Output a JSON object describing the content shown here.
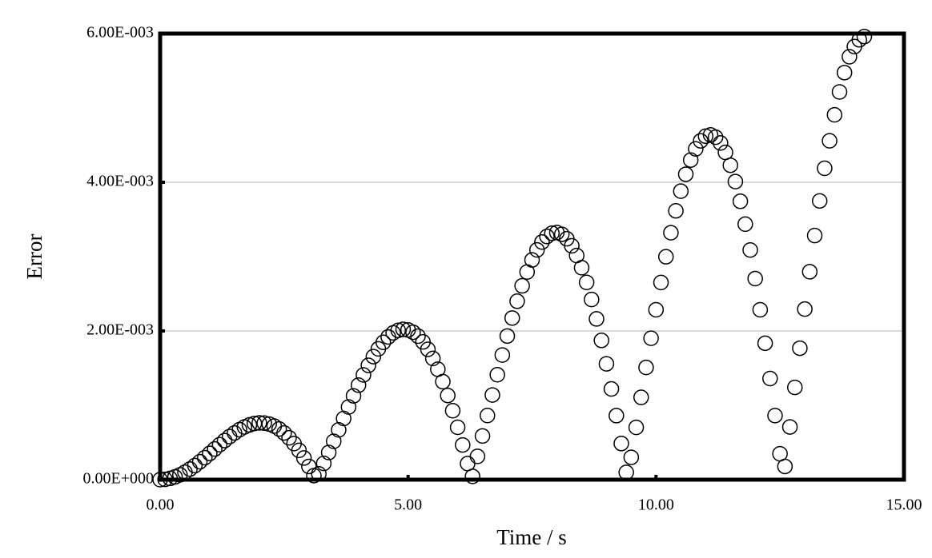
{
  "chart_data": {
    "type": "scatter",
    "x_label": "Time / s",
    "y_label": "Error",
    "x": [
      0,
      0.1,
      0.2,
      0.3,
      0.4,
      0.5,
      0.6,
      0.7,
      0.8,
      0.9,
      1.0,
      1.1,
      1.2,
      1.3,
      1.4,
      1.5,
      1.6,
      1.7,
      1.8,
      1.9,
      2.0,
      2.1,
      2.2,
      2.3,
      2.4,
      2.5,
      2.6,
      2.7,
      2.8,
      2.9,
      3.0,
      3.1,
      3.2,
      3.3,
      3.4,
      3.5,
      3.6,
      3.7,
      3.8,
      3.9,
      4.0,
      4.1,
      4.2,
      4.3,
      4.4,
      4.5,
      4.6,
      4.7,
      4.8,
      4.9,
      5.0,
      5.1,
      5.2,
      5.3,
      5.4,
      5.5,
      5.6,
      5.7,
      5.8,
      5.9,
      6.0,
      6.1,
      6.2,
      6.3,
      6.4,
      6.5,
      6.6,
      6.7,
      6.8,
      6.9,
      7.0,
      7.1,
      7.2,
      7.3,
      7.4,
      7.5,
      7.6,
      7.7,
      7.8,
      7.9,
      8.0,
      8.1,
      8.2,
      8.3,
      8.4,
      8.5,
      8.6,
      8.7,
      8.8,
      8.9,
      9.0,
      9.1,
      9.2,
      9.3,
      9.4,
      9.5,
      9.6,
      9.7,
      9.8,
      9.9,
      10.0,
      10.1,
      10.2,
      10.3,
      10.4,
      10.5,
      10.6,
      10.7,
      10.8,
      10.9,
      11.0,
      11.1,
      11.2,
      11.3,
      11.4,
      11.5,
      11.6,
      11.7,
      11.8,
      11.9,
      12.0,
      12.1,
      12.2,
      12.3,
      12.4,
      12.5,
      12.6,
      12.7,
      12.8,
      12.9,
      13.0,
      13.1,
      13.2,
      13.3,
      13.4,
      13.5,
      13.6,
      13.7,
      13.8,
      13.9,
      14.0,
      14.1,
      14.2
    ],
    "values": [
      0,
      4e-06,
      1.7e-05,
      3.7e-05,
      6.5e-05,
      0.000101,
      0.000142,
      0.000189,
      0.000241,
      0.000296,
      0.000353,
      0.000412,
      0.00047,
      0.000526,
      0.000579,
      0.000628,
      0.000672,
      0.000708,
      0.000736,
      0.000755,
      0.000764,
      0.000761,
      0.000747,
      0.00072,
      0.000681,
      0.000628,
      0.000563,
      0.000485,
      0.000394,
      0.000291,
      0.000178,
      5.4e-05,
      7.8e-05,
      0.000219,
      0.000365,
      0.000516,
      0.000669,
      0.000823,
      0.000977,
      0.001127,
      0.001271,
      0.001409,
      0.001537,
      0.001655,
      0.001759,
      0.001847,
      0.00192,
      0.001974,
      0.002008,
      0.002022,
      0.002014,
      0.001983,
      0.00193,
      0.001853,
      0.001753,
      0.00163,
      0.001485,
      0.001318,
      0.001132,
      0.000927,
      0.000704,
      0.000467,
      0.000216,
      4.4e-05,
      0.000313,
      0.000587,
      0.000863,
      0.001139,
      0.001411,
      0.001676,
      0.001932,
      0.002174,
      0.0024,
      0.002607,
      0.002793,
      0.002955,
      0.00309,
      0.003196,
      0.003271,
      0.003314,
      0.003324,
      0.0033,
      0.00324,
      0.003145,
      0.003015,
      0.002851,
      0.002653,
      0.002423,
      0.002162,
      0.001873,
      0.001558,
      0.00122,
      0.000861,
      0.000486,
      9.8e-05,
      0.0003,
      0.000703,
      0.001107,
      0.001509,
      0.001902,
      0.002285,
      0.002652,
      0.002998,
      0.003321,
      0.003616,
      0.00388,
      0.004108,
      0.004299,
      0.004449,
      0.004557,
      0.00462,
      0.004637,
      0.004606,
      0.004528,
      0.004402,
      0.004229,
      0.004009,
      0.003744,
      0.003437,
      0.003089,
      0.002704,
      0.002285,
      0.001835,
      0.00136,
      0.000862,
      0.000348,
      0.000178,
      0.000709,
      0.001241,
      0.001768,
      0.002294,
      0.002797,
      0.003284,
      0.003749,
      0.004188,
      0.004558,
      0.004907,
      0.005215,
      0.005475,
      0.005688,
      0.005825,
      0.005916,
      0.00596
    ],
    "color": "#000000",
    "xlim": [
      0,
      15
    ],
    "xticks": [
      {
        "value": 0,
        "label": "0.00"
      },
      {
        "value": 5,
        "label": "5.00"
      },
      {
        "value": 10,
        "label": "10.00"
      },
      {
        "value": 15,
        "label": "15.00"
      }
    ],
    "ylim": [
      0,
      0.006
    ],
    "yticks": [
      {
        "value": 0,
        "label": "0.00E+000"
      },
      {
        "value": 0.002,
        "label": "2.00E-003"
      },
      {
        "value": 0.004,
        "label": "4.00E-003"
      },
      {
        "value": 0.006,
        "label": "6.00E-003"
      }
    ],
    "grid": true
  }
}
